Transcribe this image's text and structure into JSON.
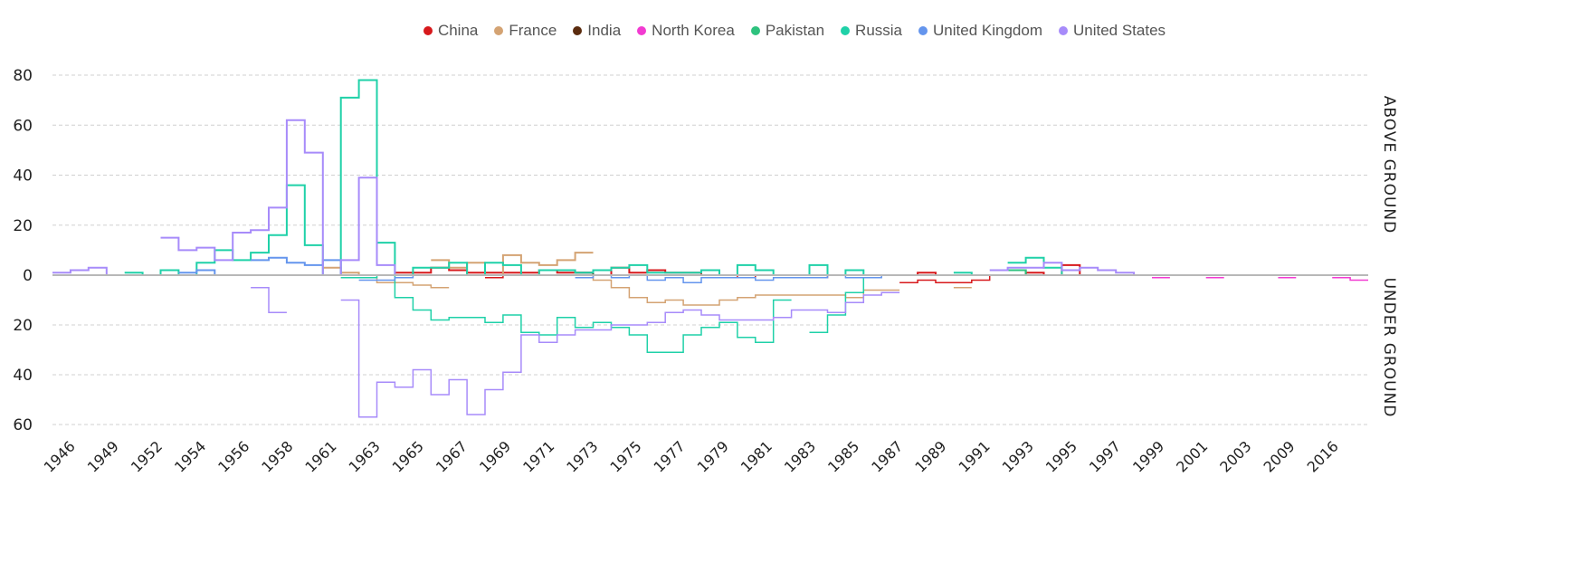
{
  "chart_data": {
    "type": "line",
    "subtype": "step",
    "title": "",
    "xlabel": "",
    "ylabel": "",
    "right_labels": {
      "above": "ABOVE GROUND",
      "below": "UNDER GROUND"
    },
    "y_ticks_above": [
      "0",
      "20",
      "40",
      "60",
      "80"
    ],
    "y_ticks_below": [
      "20",
      "40",
      "60"
    ],
    "ylim_above": [
      0,
      80
    ],
    "ylim_below": [
      0,
      60
    ],
    "grid": true,
    "legend_position": "top-center",
    "x_tick_labels": [
      "1946",
      "1949",
      "1952",
      "1954",
      "1956",
      "1958",
      "1961",
      "1963",
      "1965",
      "1967",
      "1969",
      "1971",
      "1973",
      "1975",
      "1977",
      "1979",
      "1981",
      "1983",
      "1985",
      "1987",
      "1989",
      "1991",
      "1993",
      "1995",
      "1997",
      "1999",
      "2001",
      "2003",
      "2009",
      "2016"
    ],
    "x_range": [
      1945,
      2018
    ],
    "series": [
      {
        "name": "China",
        "color": "#d7191c",
        "above": [
          [
            1964,
            1
          ],
          [
            1965,
            1
          ],
          [
            1966,
            3
          ],
          [
            1967,
            2
          ],
          [
            1968,
            1
          ],
          [
            1969,
            1
          ],
          [
            1970,
            1
          ],
          [
            1971,
            1
          ],
          [
            1972,
            2
          ],
          [
            1973,
            1
          ],
          [
            1974,
            1
          ],
          [
            1975,
            0
          ],
          [
            1976,
            3
          ],
          [
            1977,
            1
          ],
          [
            1978,
            2
          ],
          [
            1979,
            1
          ],
          [
            1980,
            1
          ],
          [
            1981,
            0
          ],
          [
            1982,
            0
          ],
          [
            1983,
            0
          ],
          [
            1984,
            0
          ],
          [
            1985,
            0
          ],
          [
            1986,
            0
          ],
          [
            1987,
            0
          ],
          [
            1988,
            0
          ],
          [
            1989,
            0
          ],
          [
            1990,
            0
          ],
          [
            1991,
            0
          ],
          [
            1992,
            0
          ],
          [
            1993,
            1
          ],
          [
            1994,
            0
          ],
          [
            1995,
            0
          ],
          [
            1996,
            0
          ],
          [
            1997,
            0
          ],
          [
            1998,
            0
          ],
          [
            1999,
            1
          ],
          [
            2000,
            0
          ],
          [
            2001,
            4
          ],
          [
            2002,
            0
          ]
        ],
        "below": [
          [
            1969,
            1
          ],
          [
            1970,
            0
          ],
          [
            1976,
            0
          ],
          [
            1978,
            0
          ],
          [
            1980,
            0
          ],
          [
            1982,
            0
          ],
          [
            1983,
            1
          ],
          [
            1984,
            0
          ],
          [
            1987,
            1
          ],
          [
            1988,
            0
          ],
          [
            1992,
            3
          ],
          [
            1993,
            2
          ],
          [
            1994,
            3
          ],
          [
            1995,
            3
          ],
          [
            1996,
            2
          ],
          [
            1997,
            0
          ]
        ]
      },
      {
        "name": "France",
        "color": "#d4a373",
        "above": [
          [
            1960,
            3
          ],
          [
            1961,
            1
          ],
          [
            1962,
            0
          ],
          [
            1966,
            6
          ],
          [
            1967,
            3
          ],
          [
            1968,
            5
          ],
          [
            1969,
            0
          ],
          [
            1970,
            8
          ],
          [
            1971,
            5
          ],
          [
            1972,
            4
          ],
          [
            1973,
            6
          ],
          [
            1974,
            9
          ]
        ],
        "below": [
          [
            1961,
            1
          ],
          [
            1962,
            1
          ],
          [
            1963,
            3
          ],
          [
            1964,
            3
          ],
          [
            1965,
            4
          ],
          [
            1966,
            5
          ],
          [
            1974,
            0
          ],
          [
            1975,
            2
          ],
          [
            1976,
            5
          ],
          [
            1977,
            9
          ],
          [
            1978,
            11
          ],
          [
            1979,
            10
          ],
          [
            1980,
            12
          ],
          [
            1981,
            12
          ],
          [
            1982,
            10
          ],
          [
            1983,
            9
          ],
          [
            1984,
            8
          ],
          [
            1985,
            8
          ],
          [
            1986,
            8
          ],
          [
            1987,
            8
          ],
          [
            1988,
            8
          ],
          [
            1989,
            9
          ],
          [
            1990,
            6
          ],
          [
            1991,
            6
          ],
          [
            1995,
            5
          ]
        ]
      },
      {
        "name": "India",
        "color": "#5b2c0f",
        "above": [
          [
            1974,
            1
          ],
          [
            1975,
            0
          ],
          [
            1998,
            2
          ],
          [
            1999,
            0
          ]
        ],
        "below": []
      },
      {
        "name": "North Korea",
        "color": "#f23bd1",
        "above": [],
        "below": [
          [
            2006,
            1
          ],
          [
            2009,
            1
          ],
          [
            2013,
            1
          ],
          [
            2016,
            1
          ],
          [
            2017,
            2
          ]
        ]
      },
      {
        "name": "Pakistan",
        "color": "#2ec27e",
        "above": [
          [
            1998,
            2
          ],
          [
            1999,
            0
          ]
        ],
        "below": []
      },
      {
        "name": "Russia",
        "color": "#1fd1a8",
        "above": [
          [
            1949,
            1
          ],
          [
            1950,
            0
          ],
          [
            1951,
            2
          ],
          [
            1952,
            0
          ],
          [
            1953,
            5
          ],
          [
            1954,
            10
          ],
          [
            1955,
            6
          ],
          [
            1956,
            9
          ],
          [
            1957,
            16
          ],
          [
            1958,
            36
          ],
          [
            1959,
            12
          ],
          [
            1960,
            0
          ],
          [
            1961,
            71
          ],
          [
            1962,
            78
          ],
          [
            1963,
            13
          ],
          [
            1964,
            0
          ],
          [
            1965,
            3
          ],
          [
            1966,
            3
          ],
          [
            1967,
            5
          ],
          [
            1968,
            0
          ],
          [
            1969,
            5
          ],
          [
            1970,
            4
          ],
          [
            1971,
            0
          ],
          [
            1972,
            2
          ],
          [
            1973,
            2
          ],
          [
            1974,
            1
          ],
          [
            1975,
            2
          ],
          [
            1976,
            3
          ],
          [
            1977,
            4
          ],
          [
            1978,
            1
          ],
          [
            1979,
            1
          ],
          [
            1980,
            1
          ],
          [
            1981,
            2
          ],
          [
            1982,
            0
          ],
          [
            1983,
            4
          ],
          [
            1984,
            2
          ],
          [
            1985,
            0
          ],
          [
            1986,
            0
          ],
          [
            1987,
            4
          ],
          [
            1988,
            0
          ],
          [
            1989,
            2
          ],
          [
            1990,
            0
          ],
          [
            1995,
            1
          ],
          [
            1996,
            0
          ],
          [
            1998,
            5
          ],
          [
            1999,
            7
          ],
          [
            2000,
            3
          ],
          [
            2001,
            0
          ]
        ],
        "below": [
          [
            1961,
            1
          ],
          [
            1962,
            1
          ],
          [
            1963,
            0
          ],
          [
            1964,
            9
          ],
          [
            1965,
            14
          ],
          [
            1966,
            18
          ],
          [
            1967,
            17
          ],
          [
            1968,
            17
          ],
          [
            1969,
            19
          ],
          [
            1970,
            16
          ],
          [
            1971,
            23
          ],
          [
            1972,
            24
          ],
          [
            1973,
            17
          ],
          [
            1974,
            21
          ],
          [
            1975,
            19
          ],
          [
            1976,
            21
          ],
          [
            1977,
            24
          ],
          [
            1978,
            31
          ],
          [
            1979,
            31
          ],
          [
            1980,
            24
          ],
          [
            1981,
            21
          ],
          [
            1982,
            19
          ],
          [
            1983,
            25
          ],
          [
            1984,
            27
          ],
          [
            1985,
            10
          ],
          [
            1987,
            23
          ],
          [
            1988,
            16
          ],
          [
            1989,
            7
          ],
          [
            1990,
            1
          ]
        ]
      },
      {
        "name": "United Kingdom",
        "color": "#6495ed",
        "above": [
          [
            1952,
            1
          ],
          [
            1953,
            2
          ],
          [
            1954,
            0
          ],
          [
            1956,
            6
          ],
          [
            1957,
            7
          ],
          [
            1958,
            5
          ],
          [
            1959,
            4
          ],
          [
            1960,
            6
          ],
          [
            1961,
            0
          ]
        ],
        "below": [
          [
            1962,
            2
          ],
          [
            1963,
            2
          ],
          [
            1964,
            1
          ],
          [
            1965,
            0
          ],
          [
            1974,
            1
          ],
          [
            1975,
            0
          ],
          [
            1976,
            1
          ],
          [
            1977,
            0
          ],
          [
            1978,
            2
          ],
          [
            1979,
            1
          ],
          [
            1980,
            3
          ],
          [
            1981,
            1
          ],
          [
            1982,
            1
          ],
          [
            1983,
            1
          ],
          [
            1984,
            2
          ],
          [
            1985,
            1
          ],
          [
            1986,
            1
          ],
          [
            1987,
            1
          ],
          [
            1988,
            0
          ],
          [
            1989,
            1
          ],
          [
            1990,
            1
          ],
          [
            1991,
            0
          ]
        ]
      },
      {
        "name": "United States",
        "color": "#a78bfa",
        "above": [
          [
            1945,
            1
          ],
          [
            1946,
            2
          ],
          [
            1947,
            3
          ],
          [
            1948,
            0
          ],
          [
            1951,
            15
          ],
          [
            1952,
            10
          ],
          [
            1953,
            11
          ],
          [
            1954,
            6
          ],
          [
            1955,
            17
          ],
          [
            1956,
            18
          ],
          [
            1957,
            27
          ],
          [
            1958,
            62
          ],
          [
            1959,
            49
          ],
          [
            1960,
            0
          ],
          [
            1961,
            6
          ],
          [
            1962,
            39
          ],
          [
            1963,
            4
          ],
          [
            1964,
            0
          ],
          [
            1997,
            2
          ],
          [
            1998,
            3
          ],
          [
            1999,
            3
          ],
          [
            2000,
            5
          ],
          [
            2001,
            2
          ],
          [
            2002,
            3
          ],
          [
            2003,
            2
          ],
          [
            2004,
            1
          ],
          [
            2005,
            0
          ]
        ],
        "below": [
          [
            1956,
            5
          ],
          [
            1957,
            15
          ],
          [
            1961,
            10
          ],
          [
            1962,
            57
          ],
          [
            1963,
            43
          ],
          [
            1964,
            45
          ],
          [
            1965,
            38
          ],
          [
            1966,
            48
          ],
          [
            1967,
            42
          ],
          [
            1968,
            56
          ],
          [
            1969,
            46
          ],
          [
            1970,
            39
          ],
          [
            1971,
            24
          ],
          [
            1972,
            27
          ],
          [
            1973,
            24
          ],
          [
            1974,
            22
          ],
          [
            1975,
            22
          ],
          [
            1976,
            20
          ],
          [
            1977,
            20
          ],
          [
            1978,
            19
          ],
          [
            1979,
            15
          ],
          [
            1980,
            14
          ],
          [
            1981,
            16
          ],
          [
            1982,
            18
          ],
          [
            1983,
            18
          ],
          [
            1984,
            18
          ],
          [
            1985,
            17
          ],
          [
            1986,
            14
          ],
          [
            1987,
            14
          ],
          [
            1988,
            15
          ],
          [
            1989,
            11
          ],
          [
            1990,
            8
          ],
          [
            1991,
            7
          ]
        ]
      }
    ]
  }
}
